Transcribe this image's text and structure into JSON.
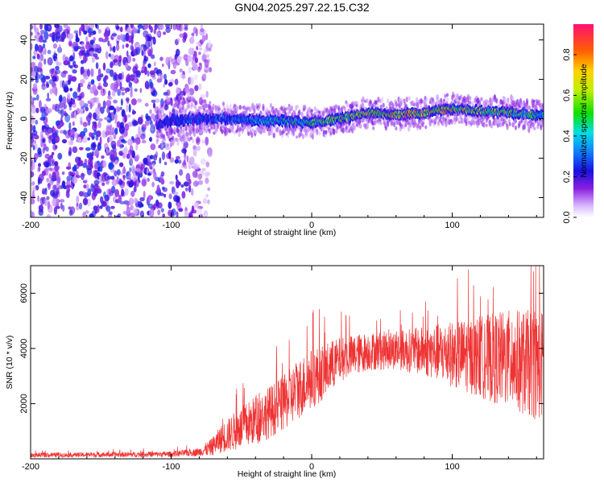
{
  "title": "GN04.2025.297.22.15.C32",
  "chart_data": [
    {
      "type": "heatmap",
      "xlabel": "Height of straight line (km)",
      "ylabel": "Frequency (Hz)",
      "xlim": [
        -200,
        165
      ],
      "ylim": [
        -50,
        48
      ],
      "xticks": [
        -200,
        -100,
        0,
        100
      ],
      "yticks": [
        -40,
        -20,
        0,
        20,
        40
      ],
      "colorbar": {
        "label": "Normalized spectral amplitude",
        "range": [
          0.0,
          0.95
        ],
        "ticks": [
          0.0,
          0.2,
          0.4,
          0.6,
          0.8
        ]
      },
      "noise_region_km": [
        -200,
        -72
      ],
      "signal_region_km": [
        -110,
        165
      ],
      "ridge": {
        "x": [
          -110,
          -100,
          -80,
          -60,
          -40,
          -20,
          0,
          20,
          40,
          60,
          80,
          100,
          120,
          140,
          160,
          165
        ],
        "freq": [
          -3,
          -1,
          0,
          0,
          -1,
          -1,
          -2,
          0,
          3,
          2,
          3,
          5,
          4,
          3,
          2,
          2
        ],
        "amplitude": [
          0.25,
          0.3,
          0.35,
          0.4,
          0.5,
          0.55,
          0.6,
          0.75,
          0.85,
          0.9,
          0.92,
          0.85,
          0.8,
          0.7,
          0.6,
          0.5
        ]
      }
    },
    {
      "type": "line",
      "xlabel": "Height of straight line (km)",
      "ylabel": "SNR (10 * v/v)",
      "xlim": [
        -200,
        165
      ],
      "ylim": [
        0,
        7000
      ],
      "xticks": [
        -200,
        -100,
        0,
        100
      ],
      "yticks": [
        2000,
        4000,
        6000
      ],
      "color": "#ee3333",
      "envelope": {
        "x": [
          -200,
          -150,
          -100,
          -80,
          -72,
          -65,
          -55,
          -40,
          -20,
          -10,
          0,
          10,
          20,
          40,
          60,
          80,
          100,
          120,
          140,
          150,
          160,
          165
        ],
        "mean": [
          130,
          150,
          170,
          250,
          400,
          700,
          1000,
          1400,
          2000,
          2500,
          2900,
          3200,
          3600,
          3900,
          3950,
          3900,
          3800,
          3700,
          3600,
          3500,
          3400,
          3400
        ],
        "spread": [
          80,
          90,
          100,
          150,
          300,
          500,
          700,
          900,
          1000,
          1100,
          1100,
          1000,
          800,
          700,
          700,
          900,
          1200,
          1500,
          1800,
          1900,
          2000,
          2000
        ]
      }
    }
  ]
}
